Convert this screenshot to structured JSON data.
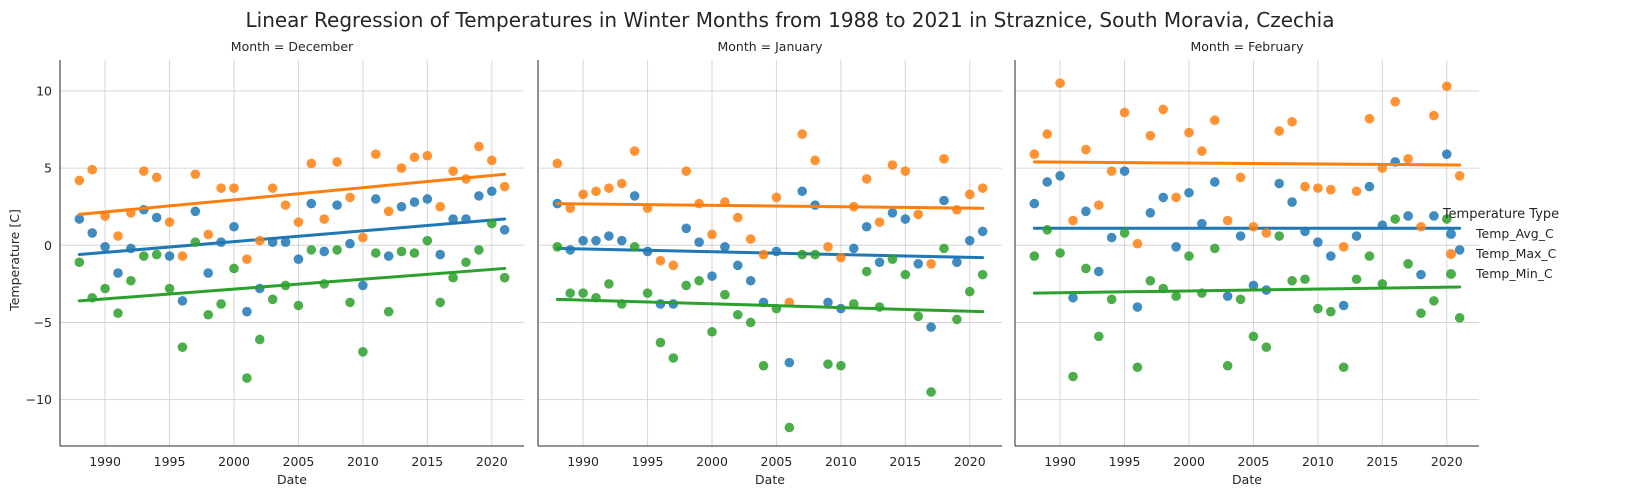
{
  "title": "Linear Regression of Temperatures in Winter Months from 1988 to 2021 in Straznice, South Moravia, Czechia",
  "legend": {
    "title": "Temperature Type",
    "entries": [
      {
        "label": "Temp_Avg_C",
        "color": "#1f77b4"
      },
      {
        "label": "Temp_Max_C",
        "color": "#ff7f0e"
      },
      {
        "label": "Temp_Min_C",
        "color": "#2ca02c"
      }
    ]
  },
  "chart_data": {
    "type": "scatter",
    "xlabel": "Date",
    "ylabel": "Temperature [C]",
    "xlim": [
      1986.5,
      2022.5
    ],
    "ylim": [
      -13,
      12
    ],
    "xticks": [
      "1990",
      "1995",
      "2000",
      "2005",
      "2010",
      "2015",
      "2020"
    ],
    "yticks": [
      "10",
      "5",
      "0",
      "−5",
      "−10"
    ],
    "grid": true,
    "legend_position": "right",
    "x": [
      1988,
      1989,
      1990,
      1991,
      1992,
      1993,
      1994,
      1995,
      1996,
      1997,
      1998,
      1999,
      2000,
      2001,
      2002,
      2003,
      2004,
      2005,
      2006,
      2007,
      2008,
      2009,
      2010,
      2011,
      2012,
      2013,
      2014,
      2015,
      2016,
      2017,
      2018,
      2019,
      2020,
      2021
    ],
    "panels": [
      {
        "title": "Month = December",
        "series": [
          {
            "name": "Temp_Avg_C",
            "values": [
              1.7,
              0.8,
              -0.1,
              -1.8,
              -0.2,
              2.3,
              1.8,
              -0.7,
              -3.6,
              2.2,
              -1.8,
              0.2,
              1.2,
              -4.3,
              -2.8,
              0.2,
              0.2,
              -0.9,
              2.7,
              -0.4,
              2.6,
              0.1,
              -2.6,
              3.0,
              -0.7,
              2.5,
              2.8,
              3.0,
              -0.6,
              1.7,
              1.7,
              3.2,
              3.5,
              1.0
            ],
            "trend": [
              -0.6,
              1.7
            ]
          },
          {
            "name": "Temp_Max_C",
            "values": [
              4.2,
              4.9,
              1.9,
              0.6,
              2.1,
              4.8,
              4.4,
              1.5,
              -0.7,
              4.6,
              0.7,
              3.7,
              3.7,
              -0.9,
              0.3,
              3.7,
              2.6,
              1.5,
              5.3,
              1.7,
              5.4,
              3.1,
              0.5,
              5.9,
              2.2,
              5.0,
              5.7,
              5.8,
              2.5,
              4.8,
              4.3,
              6.4,
              5.5,
              3.8
            ],
            "trend": [
              2.0,
              4.6
            ]
          },
          {
            "name": "Temp_Min_C",
            "values": [
              -1.1,
              -3.4,
              -2.8,
              -4.4,
              -2.3,
              -0.7,
              -0.6,
              -2.8,
              -6.6,
              0.2,
              -4.5,
              -3.8,
              -1.5,
              -8.6,
              -6.1,
              -3.5,
              -2.6,
              -3.9,
              -0.3,
              -2.5,
              -0.3,
              -3.7,
              -6.9,
              -0.5,
              -4.3,
              -0.4,
              -0.5,
              0.3,
              -3.7,
              -2.1,
              -1.1,
              -0.3,
              1.4,
              -2.1
            ],
            "trend": [
              -3.6,
              -1.5
            ]
          }
        ]
      },
      {
        "title": "Month = January",
        "series": [
          {
            "name": "Temp_Avg_C",
            "values": [
              2.7,
              -0.3,
              0.3,
              0.3,
              0.6,
              0.3,
              3.2,
              -0.4,
              -3.8,
              -3.8,
              1.1,
              0.2,
              -2.0,
              -0.1,
              -1.3,
              -2.3,
              -3.7,
              -0.4,
              -7.6,
              3.5,
              2.6,
              -3.7,
              -4.1,
              -0.2,
              1.2,
              -1.1,
              2.1,
              1.7,
              -1.2,
              -5.3,
              2.9,
              -1.1,
              0.3,
              0.9
            ],
            "trend": [
              -0.2,
              -0.8
            ]
          },
          {
            "name": "Temp_Max_C",
            "values": [
              5.3,
              2.4,
              3.3,
              3.5,
              3.7,
              4.0,
              6.1,
              2.4,
              -1.0,
              -1.3,
              4.8,
              2.7,
              0.7,
              2.8,
              1.8,
              0.4,
              -0.6,
              3.1,
              -3.7,
              7.2,
              5.5,
              -0.1,
              -0.8,
              2.5,
              4.3,
              1.5,
              5.2,
              4.8,
              2.0,
              -1.2,
              5.6,
              2.3,
              3.3,
              3.7
            ],
            "trend": [
              2.7,
              2.4
            ]
          },
          {
            "name": "Temp_Min_C",
            "values": [
              -0.1,
              -3.1,
              -3.1,
              -3.4,
              -2.5,
              -3.8,
              -0.1,
              -3.1,
              -6.3,
              -7.3,
              -2.6,
              -2.3,
              -5.6,
              -3.2,
              -4.5,
              -5.0,
              -7.8,
              -4.1,
              -11.8,
              -0.6,
              -0.6,
              -7.7,
              -7.8,
              -3.8,
              -1.7,
              -4.0,
              -0.9,
              -1.9,
              -4.6,
              -9.5,
              -0.2,
              -4.8,
              -3.0,
              -1.9
            ],
            "trend": [
              -3.5,
              -4.3
            ]
          }
        ]
      },
      {
        "title": "Month = February",
        "series": [
          {
            "name": "Temp_Avg_C",
            "values": [
              2.7,
              4.1,
              4.5,
              -3.4,
              2.2,
              -1.7,
              0.5,
              4.8,
              -4.0,
              2.1,
              3.1,
              -0.1,
              3.4,
              1.4,
              4.1,
              -3.3,
              0.6,
              -2.6,
              -2.9,
              4.0,
              2.8,
              0.9,
              0.2,
              -0.7,
              -3.9,
              0.6,
              3.8,
              1.3,
              5.4,
              1.9,
              -1.9,
              1.9,
              5.9,
              -0.3
            ],
            "trend": [
              1.1,
              1.1
            ]
          },
          {
            "name": "Temp_Max_C",
            "values": [
              5.9,
              7.2,
              10.5,
              1.6,
              6.2,
              2.6,
              4.8,
              8.6,
              0.1,
              7.1,
              8.8,
              3.1,
              7.3,
              6.1,
              8.1,
              1.6,
              4.4,
              1.2,
              0.8,
              7.4,
              8.0,
              3.8,
              3.7,
              3.6,
              -0.1,
              3.5,
              8.2,
              5.0,
              9.3,
              5.6,
              1.2,
              8.4,
              10.3,
              4.5
            ],
            "trend": [
              5.4,
              5.2
            ]
          },
          {
            "name": "Temp_Min_C",
            "values": [
              -0.7,
              1.0,
              -0.5,
              -8.5,
              -1.5,
              -5.9,
              -3.5,
              0.8,
              -7.9,
              -2.3,
              -2.8,
              -3.3,
              -0.7,
              -3.1,
              -0.2,
              -7.8,
              -3.5,
              -5.9,
              -6.6,
              0.6,
              -2.3,
              -2.2,
              -4.1,
              -4.3,
              -7.9,
              -2.2,
              -0.7,
              -2.5,
              1.7,
              -1.2,
              -4.4,
              -3.6,
              1.7,
              -4.7
            ],
            "trend": [
              -3.1,
              -2.7
            ]
          }
        ]
      }
    ]
  }
}
